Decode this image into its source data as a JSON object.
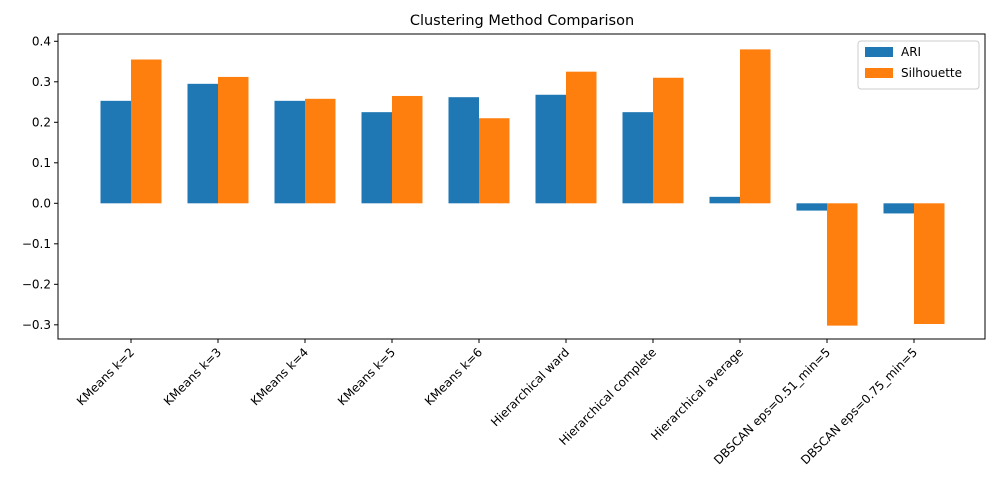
{
  "chart_data": {
    "type": "bar",
    "title": "Clustering Method Comparison",
    "xlabel": "",
    "ylabel": "",
    "categories": [
      "KMeans k=2",
      "KMeans k=3",
      "KMeans k=4",
      "KMeans k=5",
      "KMeans k=6",
      "Hierarchical ward",
      "Hierarchical complete",
      "Hierarchical average",
      "DBSCAN eps=0.51_min=5",
      "DBSCAN eps=0.75_min=5"
    ],
    "series": [
      {
        "name": "ARI",
        "color": "#1f77b4",
        "values": [
          0.253,
          0.295,
          0.253,
          0.225,
          0.262,
          0.268,
          0.225,
          0.016,
          -0.018,
          -0.025
        ]
      },
      {
        "name": "Silhouette",
        "color": "#ff7f0e",
        "values": [
          0.355,
          0.312,
          0.258,
          0.265,
          0.21,
          0.325,
          0.31,
          0.38,
          -0.302,
          -0.298
        ]
      }
    ],
    "ylim": [
      -0.335,
      0.418
    ],
    "yticks": [
      -0.3,
      -0.2,
      -0.1,
      0.0,
      0.1,
      0.2,
      0.3,
      0.4
    ],
    "ytick_labels": [
      "−0.3",
      "−0.2",
      "−0.1",
      "0.0",
      "0.1",
      "0.2",
      "0.3",
      "0.4"
    ],
    "legend_position": "top-right",
    "grid": false
  }
}
